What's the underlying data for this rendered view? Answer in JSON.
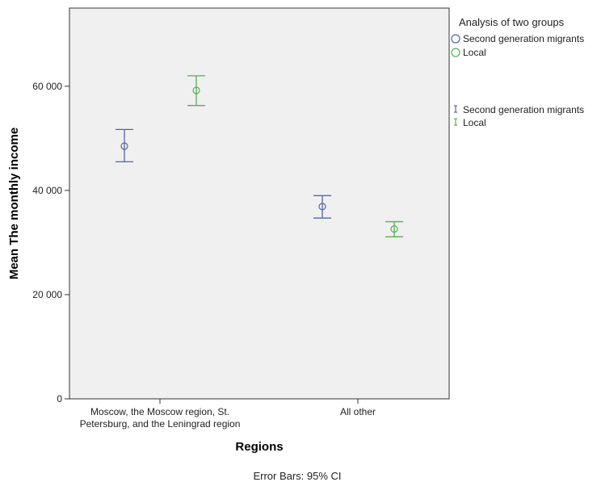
{
  "chart_data": {
    "type": "scatter",
    "subtype": "error-bar",
    "xlabel": "Regions",
    "ylabel": "Mean The monthly income",
    "categories": [
      [
        "Moscow, the Moscow region, St.",
        "Petersburg, and the Leningrad region"
      ],
      [
        "All other"
      ]
    ],
    "ylim": [
      0,
      75000
    ],
    "yticks": [
      0,
      20000,
      40000,
      60000
    ],
    "ytick_labels": [
      "0",
      "20 000",
      "40 000",
      "60 000"
    ],
    "grid": false,
    "legend_title": "Analysis of two groups",
    "legend_position": "right",
    "series": [
      {
        "name": "Second generation migrants",
        "color": "#5166a8",
        "means": [
          48500,
          36900
        ],
        "ci_low": [
          45500,
          34700
        ],
        "ci_high": [
          51700,
          39000
        ]
      },
      {
        "name": "Local",
        "color": "#55b050",
        "means": [
          59200,
          32600
        ],
        "ci_low": [
          56300,
          31100
        ],
        "ci_high": [
          62000,
          34000
        ]
      }
    ],
    "footnote": "Error Bars: 95% CI"
  }
}
